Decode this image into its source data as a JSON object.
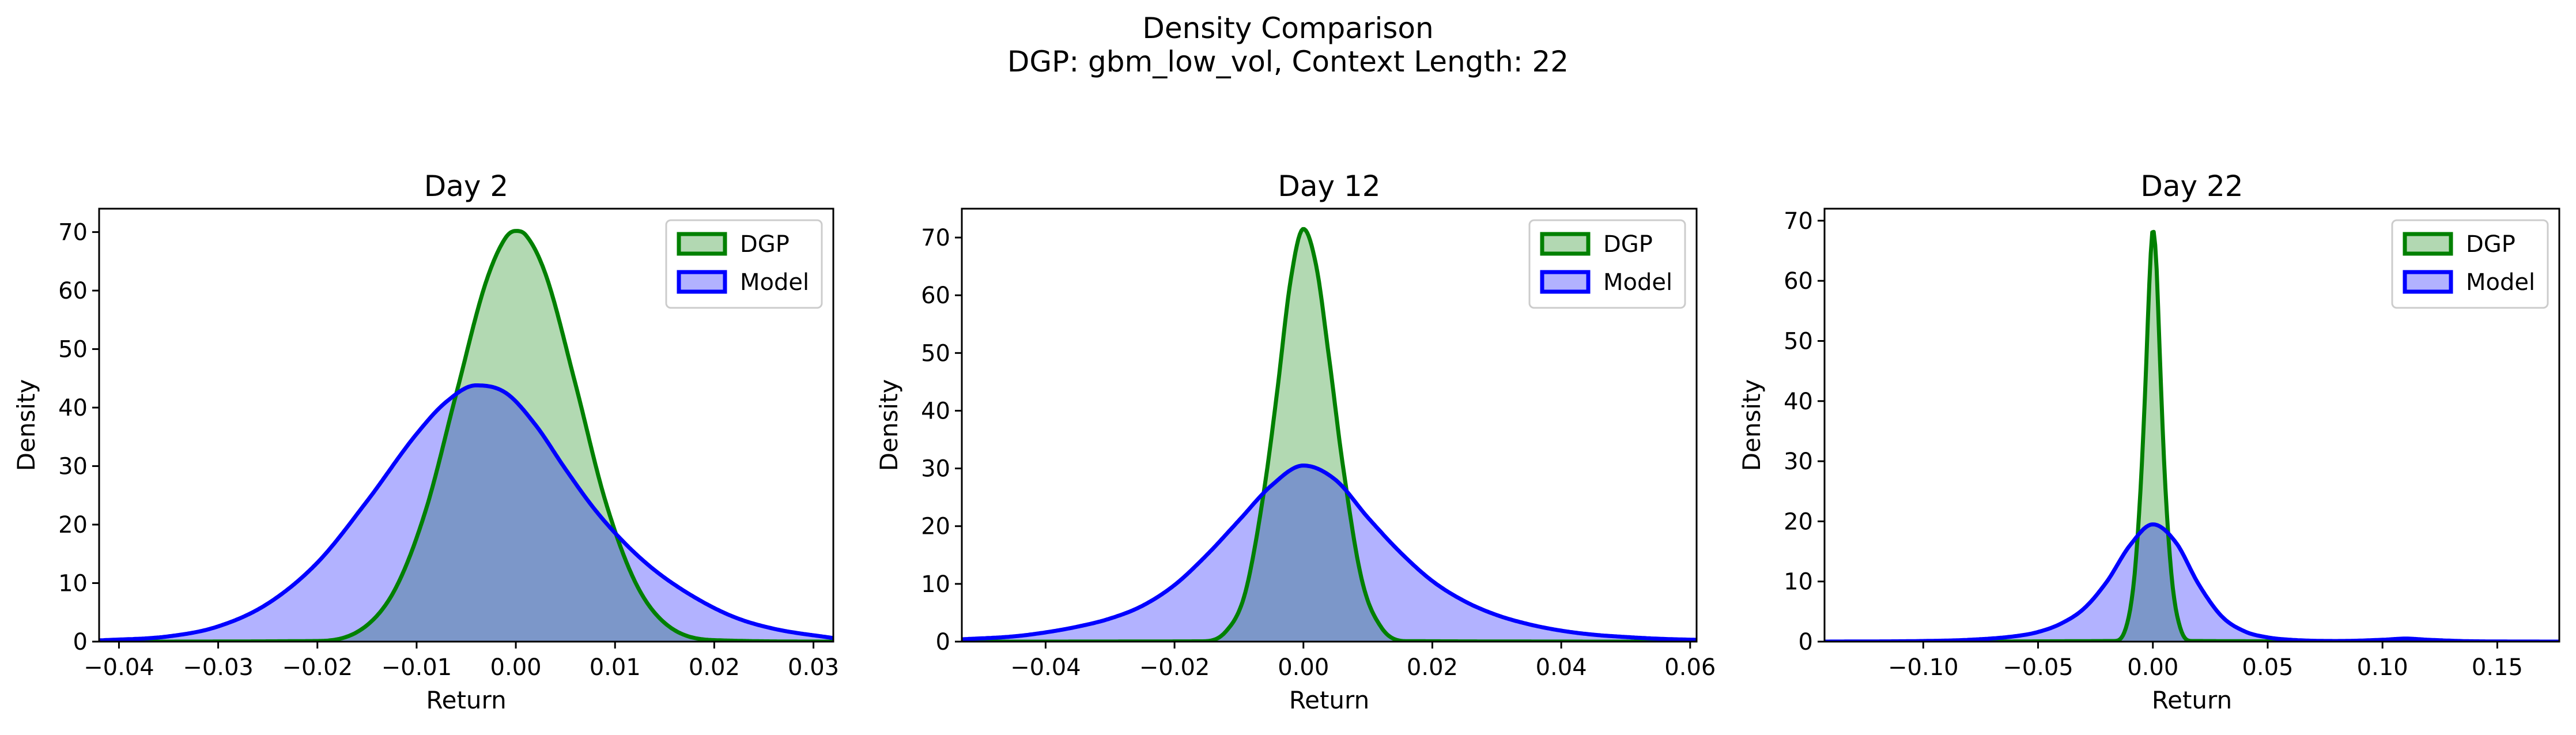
{
  "figure": {
    "title_line1": "Density Comparison",
    "title_line2": "DGP: gbm_low_vol, Context Length: 22"
  },
  "chart_data": [
    {
      "type": "area",
      "title": "Day 2",
      "xlabel": "Return",
      "ylabel": "Density",
      "xlim": [
        -0.042,
        0.032
      ],
      "ylim": [
        0,
        74
      ],
      "xticks": [
        -0.04,
        -0.03,
        -0.02,
        -0.01,
        0.0,
        0.01,
        0.02,
        0.03
      ],
      "xtick_labels": [
        "−0.04",
        "−0.03",
        "−0.02",
        "−0.01",
        "0.00",
        "0.01",
        "0.02",
        "0.03"
      ],
      "yticks": [
        0,
        10,
        20,
        30,
        40,
        50,
        60,
        70
      ],
      "ytick_labels": [
        "0",
        "10",
        "20",
        "30",
        "40",
        "50",
        "60",
        "70"
      ],
      "legend_position": "top-right",
      "series": [
        {
          "name": "DGP",
          "color": "#008000",
          "fill": "#b2d8b2",
          "x": [
            -0.042,
            -0.02,
            -0.015,
            -0.012,
            -0.009,
            -0.006,
            -0.003,
            -0.001,
            0.0,
            0.001,
            0.003,
            0.006,
            0.009,
            0.012,
            0.015,
            0.02,
            0.032
          ],
          "y": [
            0,
            0.1,
            2.8,
            9.5,
            22.9,
            42.4,
            61.5,
            69.1,
            70.2,
            69.5,
            62.8,
            44.1,
            24.2,
            10.3,
            3.2,
            0.25,
            0
          ]
        },
        {
          "name": "Model",
          "color": "#0000ff",
          "fill": "#b2b2ff",
          "x": [
            -0.042,
            -0.035,
            -0.03,
            -0.025,
            -0.02,
            -0.015,
            -0.01,
            -0.007,
            -0.004,
            -0.001,
            0.002,
            0.005,
            0.008,
            0.011,
            0.014,
            0.018,
            0.022,
            0.026,
            0.032
          ],
          "y": [
            0.2,
            0.9,
            2.6,
            6.5,
            13.5,
            24.0,
            35.5,
            41.0,
            43.8,
            42.5,
            37.0,
            29.5,
            22.5,
            16.8,
            12.2,
            7.6,
            4.2,
            2.2,
            0.6
          ]
        }
      ]
    },
    {
      "type": "area",
      "title": "Day 12",
      "xlabel": "Return",
      "ylabel": "Density",
      "xlim": [
        -0.053,
        0.061
      ],
      "ylim": [
        0,
        75
      ],
      "xticks": [
        -0.04,
        -0.02,
        0.0,
        0.02,
        0.04,
        0.06
      ],
      "xtick_labels": [
        "−0.04",
        "−0.02",
        "0.00",
        "0.02",
        "0.04",
        "0.06"
      ],
      "yticks": [
        0,
        10,
        20,
        30,
        40,
        50,
        60,
        70
      ],
      "ytick_labels": [
        "0",
        "10",
        "20",
        "30",
        "40",
        "50",
        "60",
        "70"
      ],
      "legend_position": "top-right",
      "series": [
        {
          "name": "DGP",
          "color": "#008000",
          "fill": "#b2d8b2",
          "x": [
            -0.053,
            -0.016,
            -0.012,
            -0.009,
            -0.006,
            -0.004,
            -0.002,
            0.0,
            0.002,
            0.004,
            0.006,
            0.009,
            0.012,
            0.016,
            0.061
          ],
          "y": [
            0,
            0.05,
            1.8,
            8.6,
            27.0,
            44.0,
            62.5,
            71.5,
            65.0,
            49.0,
            31.5,
            11.0,
            2.6,
            0.08,
            0
          ]
        },
        {
          "name": "Model",
          "color": "#0000ff",
          "fill": "#b2b2ff",
          "x": [
            -0.053,
            -0.045,
            -0.04,
            -0.035,
            -0.03,
            -0.025,
            -0.02,
            -0.015,
            -0.01,
            -0.005,
            0.0,
            0.005,
            0.01,
            0.015,
            0.02,
            0.025,
            0.03,
            0.035,
            0.04,
            0.045,
            0.05,
            0.055,
            0.061
          ],
          "y": [
            0.4,
            0.9,
            1.6,
            2.6,
            4.0,
            6.2,
            9.8,
            15.0,
            21.0,
            27.0,
            30.5,
            28.0,
            21.5,
            15.5,
            10.5,
            7.0,
            4.6,
            3.0,
            1.9,
            1.2,
            0.8,
            0.5,
            0.3
          ]
        }
      ]
    },
    {
      "type": "area",
      "title": "Day 22",
      "xlabel": "Return",
      "ylabel": "Density",
      "xlim": [
        -0.143,
        0.177
      ],
      "ylim": [
        0,
        72
      ],
      "xticks": [
        -0.1,
        -0.05,
        0.0,
        0.05,
        0.1,
        0.15
      ],
      "xtick_labels": [
        "−0.10",
        "−0.05",
        "0.00",
        "0.05",
        "0.10",
        "0.15"
      ],
      "yticks": [
        0,
        10,
        20,
        30,
        40,
        50,
        60,
        70
      ],
      "ytick_labels": [
        "0",
        "10",
        "20",
        "30",
        "40",
        "50",
        "60",
        "70"
      ],
      "legend_position": "top-right",
      "series": [
        {
          "name": "DGP",
          "color": "#008000",
          "fill": "#b2d8b2",
          "x": [
            -0.143,
            -0.017,
            -0.012,
            -0.008,
            -0.005,
            -0.003,
            -0.0015,
            0.0,
            0.0015,
            0.003,
            0.005,
            0.008,
            0.012,
            0.017,
            0.177
          ],
          "y": [
            0,
            0.1,
            2.0,
            11.0,
            28.0,
            45.0,
            60.0,
            68.5,
            63.0,
            48.0,
            29.0,
            11.5,
            2.2,
            0.1,
            0
          ]
        },
        {
          "name": "Model",
          "color": "#0000ff",
          "fill": "#b2b2ff",
          "x": [
            -0.143,
            -0.1,
            -0.08,
            -0.06,
            -0.05,
            -0.04,
            -0.03,
            -0.02,
            -0.01,
            0.0,
            0.01,
            0.02,
            0.03,
            0.04,
            0.05,
            0.06,
            0.08,
            0.1,
            0.11,
            0.12,
            0.14,
            0.177
          ],
          "y": [
            0,
            0.1,
            0.3,
            0.9,
            1.6,
            3.0,
            5.5,
            10.0,
            16.0,
            19.5,
            16.5,
            9.5,
            4.2,
            1.7,
            0.7,
            0.3,
            0.1,
            0.3,
            0.5,
            0.3,
            0.05,
            0
          ]
        }
      ]
    }
  ]
}
